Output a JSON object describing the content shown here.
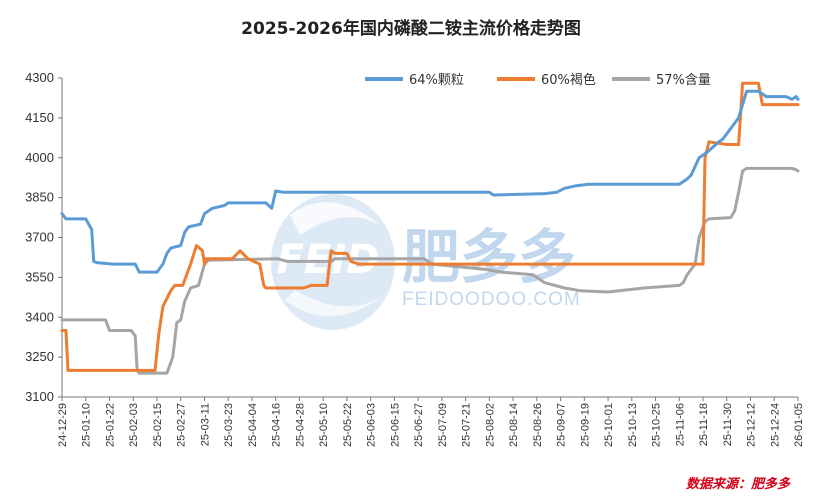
{
  "chart_data": {
    "type": "line",
    "title": "2025-2026年国内磷酸二铵主流价格走势图",
    "xlabel": "",
    "ylabel": "",
    "ylim": [
      3100,
      4300
    ],
    "yticks": [
      3100,
      3250,
      3400,
      3550,
      3700,
      3850,
      4000,
      4150,
      4300
    ],
    "x_range": [
      "2024-12-29",
      "2026-01-05"
    ],
    "xticks": [
      "24-12-29",
      "25-01-10",
      "25-01-22",
      "25-02-03",
      "25-02-15",
      "25-02-27",
      "25-03-11",
      "25-03-23",
      "25-04-04",
      "25-04-16",
      "25-04-28",
      "25-05-10",
      "25-05-22",
      "25-06-03",
      "25-06-15",
      "25-06-27",
      "25-07-09",
      "25-07-21",
      "25-08-02",
      "25-08-14",
      "25-08-26",
      "25-09-07",
      "25-09-19",
      "25-10-01",
      "25-10-13",
      "25-10-25",
      "25-11-06",
      "25-11-18",
      "25-11-30",
      "25-12-12",
      "25-12-24",
      "26-01-05"
    ],
    "grid": false,
    "legend_position": "top-right",
    "series": [
      {
        "name": "64%颗粒",
        "color": "#5b9bd5",
        "points": [
          [
            "2024-12-29",
            3790
          ],
          [
            "2024-12-31",
            3770
          ],
          [
            "2025-01-08",
            3770
          ],
          [
            "2025-01-10",
            3770
          ],
          [
            "2025-01-13",
            3730
          ],
          [
            "2025-01-14",
            3610
          ],
          [
            "2025-01-16",
            3605
          ],
          [
            "2025-01-24",
            3600
          ],
          [
            "2025-02-04",
            3600
          ],
          [
            "2025-02-06",
            3570
          ],
          [
            "2025-02-15",
            3570
          ],
          [
            "2025-02-18",
            3600
          ],
          [
            "2025-02-20",
            3640
          ],
          [
            "2025-02-22",
            3660
          ],
          [
            "2025-02-27",
            3670
          ],
          [
            "2025-03-01",
            3720
          ],
          [
            "2025-03-03",
            3740
          ],
          [
            "2025-03-09",
            3750
          ],
          [
            "2025-03-11",
            3790
          ],
          [
            "2025-03-15",
            3810
          ],
          [
            "2025-03-21",
            3820
          ],
          [
            "2025-03-23",
            3830
          ],
          [
            "2025-04-11",
            3830
          ],
          [
            "2025-04-14",
            3810
          ],
          [
            "2025-04-16",
            3875
          ],
          [
            "2025-04-20",
            3870
          ],
          [
            "2025-05-10",
            3870
          ],
          [
            "2025-08-02",
            3870
          ],
          [
            "2025-08-04",
            3860
          ],
          [
            "2025-08-30",
            3865
          ],
          [
            "2025-09-05",
            3870
          ],
          [
            "2025-09-09",
            3885
          ],
          [
            "2025-09-15",
            3895
          ],
          [
            "2025-09-21",
            3900
          ],
          [
            "2025-11-06",
            3900
          ],
          [
            "2025-11-10",
            3920
          ],
          [
            "2025-11-12",
            3935
          ],
          [
            "2025-11-16",
            4000
          ],
          [
            "2025-11-20",
            4020
          ],
          [
            "2025-11-26",
            4060
          ],
          [
            "2025-11-28",
            4070
          ],
          [
            "2025-12-06",
            4150
          ],
          [
            "2025-12-08",
            4200
          ],
          [
            "2025-12-10",
            4250
          ],
          [
            "2025-12-16",
            4250
          ],
          [
            "2025-12-20",
            4230
          ],
          [
            "2025-12-30",
            4230
          ],
          [
            "2026-01-02",
            4220
          ],
          [
            "2026-01-04",
            4230
          ],
          [
            "2026-01-05",
            4220
          ]
        ]
      },
      {
        "name": "60%褐色",
        "color": "#ed7d31",
        "points": [
          [
            "2024-12-29",
            3350
          ],
          [
            "2024-12-31",
            3350
          ],
          [
            "2025-01-01",
            3200
          ],
          [
            "2025-01-10",
            3200
          ],
          [
            "2025-02-13",
            3200
          ],
          [
            "2025-02-14",
            3200
          ],
          [
            "2025-02-16",
            3340
          ],
          [
            "2025-02-18",
            3440
          ],
          [
            "2025-02-22",
            3500
          ],
          [
            "2025-02-24",
            3520
          ],
          [
            "2025-02-28",
            3520
          ],
          [
            "2025-03-04",
            3600
          ],
          [
            "2025-03-07",
            3670
          ],
          [
            "2025-03-10",
            3650
          ],
          [
            "2025-03-11",
            3600
          ],
          [
            "2025-03-12",
            3620
          ],
          [
            "2025-03-25",
            3620
          ],
          [
            "2025-03-29",
            3650
          ],
          [
            "2025-04-02",
            3620
          ],
          [
            "2025-04-08",
            3600
          ],
          [
            "2025-04-10",
            3520
          ],
          [
            "2025-04-11",
            3510
          ],
          [
            "2025-04-30",
            3510
          ],
          [
            "2025-05-04",
            3520
          ],
          [
            "2025-05-12",
            3520
          ],
          [
            "2025-05-14",
            3650
          ],
          [
            "2025-05-16",
            3640
          ],
          [
            "2025-05-22",
            3640
          ],
          [
            "2025-05-24",
            3610
          ],
          [
            "2025-05-28",
            3600
          ],
          [
            "2025-06-15",
            3600
          ],
          [
            "2025-11-18",
            3600
          ],
          [
            "2025-11-19",
            4000
          ],
          [
            "2025-11-21",
            4060
          ],
          [
            "2025-11-30",
            4050
          ],
          [
            "2025-12-06",
            4050
          ],
          [
            "2025-12-08",
            4280
          ],
          [
            "2025-12-16",
            4280
          ],
          [
            "2025-12-18",
            4200
          ],
          [
            "2026-01-05",
            4200
          ]
        ]
      },
      {
        "name": "57%含量",
        "color": "#a5a5a5",
        "points": [
          [
            "2024-12-29",
            3390
          ],
          [
            "2025-01-20",
            3390
          ],
          [
            "2025-01-22",
            3350
          ],
          [
            "2025-02-02",
            3350
          ],
          [
            "2025-02-04",
            3330
          ],
          [
            "2025-02-05",
            3200
          ],
          [
            "2025-02-06",
            3190
          ],
          [
            "2025-02-20",
            3190
          ],
          [
            "2025-02-23",
            3250
          ],
          [
            "2025-02-25",
            3380
          ],
          [
            "2025-02-27",
            3390
          ],
          [
            "2025-03-01",
            3460
          ],
          [
            "2025-03-04",
            3510
          ],
          [
            "2025-03-08",
            3520
          ],
          [
            "2025-03-11",
            3600
          ],
          [
            "2025-03-13",
            3615
          ],
          [
            "2025-04-17",
            3620
          ],
          [
            "2025-04-22",
            3610
          ],
          [
            "2025-05-14",
            3610
          ],
          [
            "2025-05-16",
            3620
          ],
          [
            "2025-06-30",
            3620
          ],
          [
            "2025-07-04",
            3600
          ],
          [
            "2025-07-31",
            3580
          ],
          [
            "2025-08-08",
            3570
          ],
          [
            "2025-08-24",
            3560
          ],
          [
            "2025-08-30",
            3530
          ],
          [
            "2025-09-09",
            3510
          ],
          [
            "2025-09-17",
            3500
          ],
          [
            "2025-10-01",
            3495
          ],
          [
            "2025-10-19",
            3510
          ],
          [
            "2025-11-06",
            3520
          ],
          [
            "2025-11-08",
            3530
          ],
          [
            "2025-11-10",
            3560
          ],
          [
            "2025-11-14",
            3600
          ],
          [
            "2025-11-16",
            3700
          ],
          [
            "2025-11-19",
            3760
          ],
          [
            "2025-11-21",
            3770
          ],
          [
            "2025-12-02",
            3775
          ],
          [
            "2025-12-04",
            3800
          ],
          [
            "2025-12-06",
            3870
          ],
          [
            "2025-12-08",
            3950
          ],
          [
            "2025-12-10",
            3960
          ],
          [
            "2026-01-02",
            3960
          ],
          [
            "2026-01-04",
            3955
          ],
          [
            "2026-01-05",
            3950
          ]
        ]
      }
    ]
  },
  "watermark": {
    "text_cn": "肥多多",
    "text_en": "FEIDOODOO.COM",
    "logo": "FEID"
  },
  "source": "数据来源：肥多多"
}
